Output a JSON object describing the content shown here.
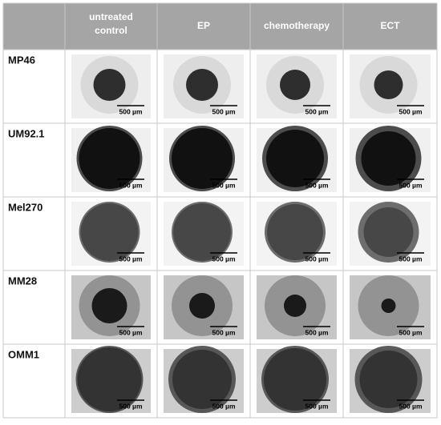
{
  "header": {
    "columns": [
      "untreated control",
      "EP",
      "chemotherapy",
      "ECT"
    ]
  },
  "rows": [
    {
      "label": "MP46",
      "scale_bars": [
        "500 µm",
        "500 µm",
        "500 µm",
        "500 µm"
      ]
    },
    {
      "label": "UM92.1",
      "scale_bars": [
        "500 µm",
        "500 µm",
        "500 µm",
        "500 µm"
      ]
    },
    {
      "label": "Mel270",
      "scale_bars": [
        "500 µm",
        "500 µm",
        "500 µm",
        "500 µm"
      ]
    },
    {
      "label": "MM28",
      "scale_bars": [
        "500 µm",
        "500 µm",
        "500 µm",
        "500 µm"
      ]
    },
    {
      "label": "OMM1",
      "scale_bars": [
        "500 µm",
        "500 µm",
        "500 µm",
        "500 µm"
      ]
    }
  ]
}
